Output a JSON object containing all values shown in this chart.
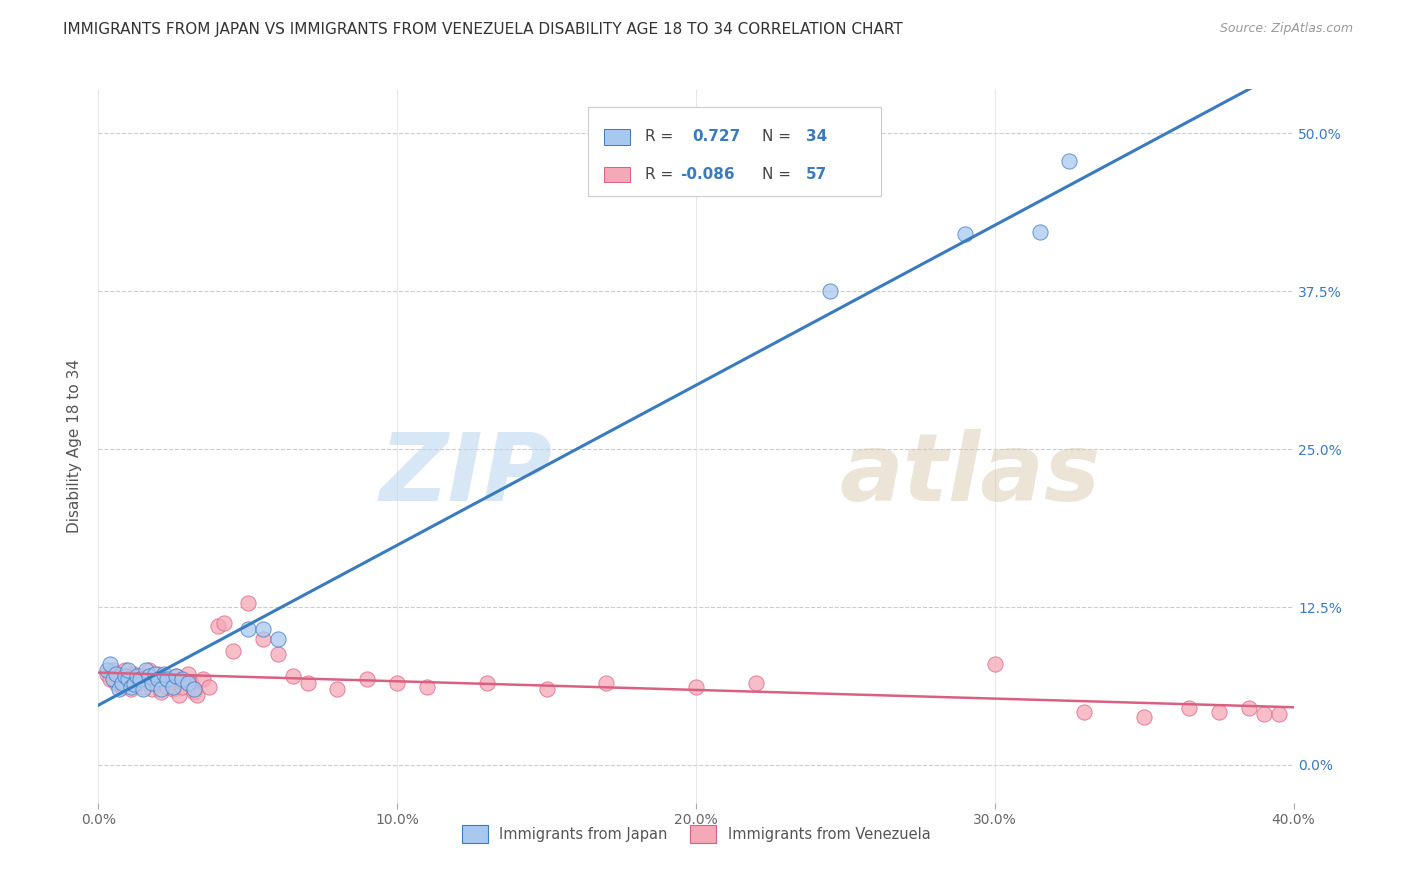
{
  "title": "IMMIGRANTS FROM JAPAN VS IMMIGRANTS FROM VENEZUELA DISABILITY AGE 18 TO 34 CORRELATION CHART",
  "source": "Source: ZipAtlas.com",
  "xlabel_ticks": [
    "0.0%",
    "10.0%",
    "20.0%",
    "30.0%",
    "40.0%"
  ],
  "ylabel_ticks": [
    "0.0%",
    "12.5%",
    "25.0%",
    "37.5%",
    "50.0%"
  ],
  "ylabel_label": "Disability Age 18 to 34",
  "xlim": [
    0.0,
    0.4
  ],
  "ylim": [
    -0.03,
    0.535
  ],
  "japan_R": 0.727,
  "japan_N": 34,
  "venezuela_R": -0.086,
  "venezuela_N": 57,
  "japan_color": "#a8c8f0",
  "venezuela_color": "#f5a8b8",
  "japan_line_color": "#3a7abf",
  "venezuela_line_color": "#d96080",
  "legend_japan_label": "Immigrants from Japan",
  "legend_venezuela_label": "Immigrants from Venezuela",
  "watermark_zip": "ZIP",
  "watermark_atlas": "atlas",
  "background_color": "#ffffff",
  "title_fontsize": 11,
  "japan_scatter_x": [
    0.003,
    0.004,
    0.005,
    0.006,
    0.007,
    0.008,
    0.009,
    0.01,
    0.01,
    0.011,
    0.012,
    0.013,
    0.014,
    0.015,
    0.016,
    0.017,
    0.018,
    0.019,
    0.02,
    0.021,
    0.022,
    0.023,
    0.025,
    0.026,
    0.028,
    0.03,
    0.032,
    0.05,
    0.055,
    0.06,
    0.245,
    0.29,
    0.315,
    0.325
  ],
  "japan_scatter_y": [
    0.075,
    0.08,
    0.068,
    0.072,
    0.06,
    0.065,
    0.07,
    0.068,
    0.075,
    0.062,
    0.064,
    0.07,
    0.068,
    0.06,
    0.075,
    0.07,
    0.065,
    0.072,
    0.068,
    0.06,
    0.072,
    0.068,
    0.062,
    0.07,
    0.068,
    0.065,
    0.06,
    0.108,
    0.108,
    0.1,
    0.375,
    0.42,
    0.422,
    0.478
  ],
  "venezuela_scatter_x": [
    0.003,
    0.004,
    0.005,
    0.006,
    0.007,
    0.008,
    0.009,
    0.01,
    0.011,
    0.012,
    0.013,
    0.014,
    0.015,
    0.016,
    0.017,
    0.018,
    0.019,
    0.02,
    0.021,
    0.022,
    0.023,
    0.024,
    0.025,
    0.026,
    0.027,
    0.028,
    0.03,
    0.031,
    0.032,
    0.033,
    0.035,
    0.037,
    0.04,
    0.042,
    0.045,
    0.05,
    0.055,
    0.06,
    0.065,
    0.07,
    0.08,
    0.09,
    0.1,
    0.11,
    0.13,
    0.15,
    0.17,
    0.2,
    0.22,
    0.3,
    0.33,
    0.35,
    0.365,
    0.375,
    0.385,
    0.39,
    0.395
  ],
  "venezuela_scatter_y": [
    0.072,
    0.068,
    0.075,
    0.065,
    0.07,
    0.062,
    0.075,
    0.068,
    0.06,
    0.072,
    0.065,
    0.07,
    0.062,
    0.068,
    0.075,
    0.06,
    0.065,
    0.072,
    0.058,
    0.068,
    0.062,
    0.065,
    0.06,
    0.07,
    0.055,
    0.062,
    0.072,
    0.065,
    0.058,
    0.055,
    0.068,
    0.062,
    0.11,
    0.112,
    0.09,
    0.128,
    0.1,
    0.088,
    0.07,
    0.065,
    0.06,
    0.068,
    0.065,
    0.062,
    0.065,
    0.06,
    0.065,
    0.062,
    0.065,
    0.08,
    0.042,
    0.038,
    0.045,
    0.042,
    0.045,
    0.04,
    0.04
  ]
}
